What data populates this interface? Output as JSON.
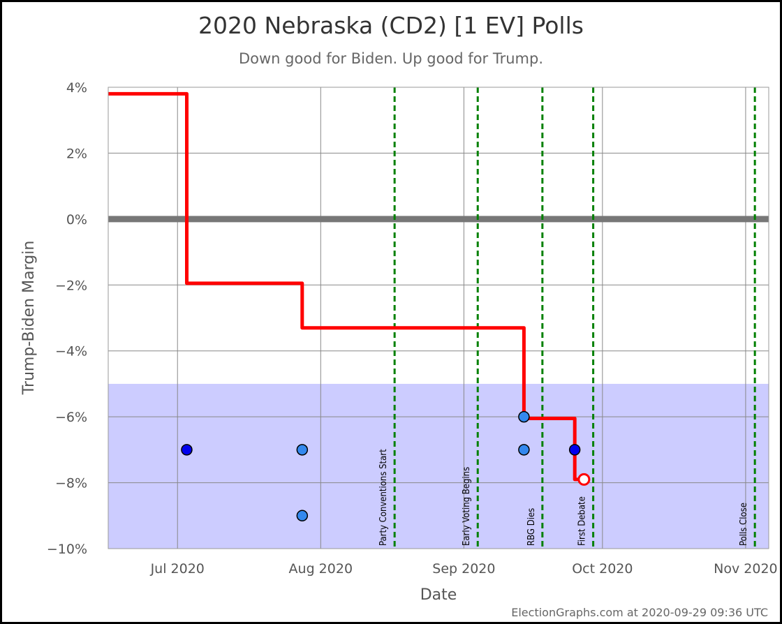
{
  "chart_data": {
    "type": "line",
    "title": "2020 Nebraska (CD2) [1 EV] Polls",
    "subtitle": "Down good for Biden. Up good for Trump.",
    "xlabel": "Date",
    "ylabel": "Trump-Biden Margin",
    "footer": "ElectionGraphs.com at 2020-09-29 09:36 UTC",
    "x_range": [
      "2020-06-16",
      "2020-11-06"
    ],
    "ylim": [
      -10,
      4
    ],
    "y_ticks": [
      {
        "value": 4,
        "label": "4%"
      },
      {
        "value": 2,
        "label": "2%"
      },
      {
        "value": 0,
        "label": "0%"
      },
      {
        "value": -2,
        "label": "−2%"
      },
      {
        "value": -4,
        "label": "−4%"
      },
      {
        "value": -6,
        "label": "−6%"
      },
      {
        "value": -8,
        "label": "−8%"
      },
      {
        "value": -10,
        "label": "−10%"
      }
    ],
    "x_ticks": [
      {
        "date": "2020-07-01",
        "label": "Jul 2020"
      },
      {
        "date": "2020-08-01",
        "label": "Aug 2020"
      },
      {
        "date": "2020-09-01",
        "label": "Sep 2020"
      },
      {
        "date": "2020-10-01",
        "label": "Oct 2020"
      },
      {
        "date": "2020-11-01",
        "label": "Nov 2020"
      }
    ],
    "shaded_region": {
      "from": -10,
      "to": -5,
      "color": "#ccccff"
    },
    "zero_line": {
      "value": 0,
      "color": "#777777"
    },
    "events": [
      {
        "date": "2020-08-17",
        "label": "Party Conventions Start"
      },
      {
        "date": "2020-09-04",
        "label": "Early Voting Begins"
      },
      {
        "date": "2020-09-18",
        "label": "RBG Dies"
      },
      {
        "date": "2020-09-29",
        "label": "First Debate"
      },
      {
        "date": "2020-11-03",
        "label": "Polls Close"
      }
    ],
    "series": [
      {
        "type": "step",
        "color": "#ff0000",
        "points": [
          {
            "x": "2020-06-16",
            "y": 3.8
          },
          {
            "x": "2020-07-03",
            "y": 3.8
          },
          {
            "x": "2020-07-03",
            "y": -1.95
          },
          {
            "x": "2020-07-28",
            "y": -1.95
          },
          {
            "x": "2020-07-28",
            "y": -3.3
          },
          {
            "x": "2020-09-14",
            "y": -3.3
          },
          {
            "x": "2020-09-14",
            "y": -6.05
          },
          {
            "x": "2020-09-25",
            "y": -6.05
          },
          {
            "x": "2020-09-25",
            "y": -7.9
          },
          {
            "x": "2020-09-27",
            "y": -7.9
          }
        ],
        "end_marker": {
          "x": "2020-09-27",
          "y": -7.9
        }
      }
    ],
    "polls": [
      {
        "x": "2020-07-03",
        "y": -7,
        "color": "#0000ee"
      },
      {
        "x": "2020-07-28",
        "y": -7,
        "color": "#3388ee"
      },
      {
        "x": "2020-07-28",
        "y": -9,
        "color": "#3388ee"
      },
      {
        "x": "2020-09-14",
        "y": -6,
        "color": "#3388ee"
      },
      {
        "x": "2020-09-14",
        "y": -7,
        "color": "#3388ee"
      },
      {
        "x": "2020-09-25",
        "y": -7,
        "color": "#0000ee"
      }
    ],
    "grid": true
  }
}
